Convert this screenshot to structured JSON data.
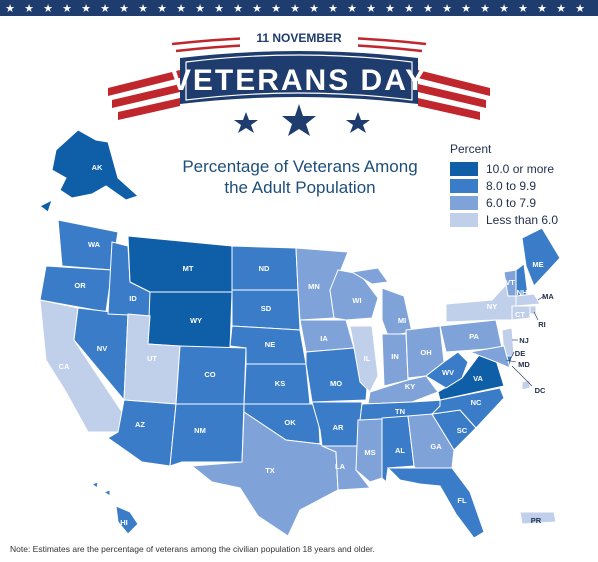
{
  "banner": {
    "date": "11 NOVEMBER",
    "title": "VETERANS DAY"
  },
  "map_title": {
    "line1": "Percentage of Veterans Among",
    "line2": "the Adult Population"
  },
  "legend": {
    "title": "Percent",
    "items": [
      {
        "label": "10.0 or more",
        "color": "#0f5ea8"
      },
      {
        "label": "8.0 to 9.9",
        "color": "#3a7cc8"
      },
      {
        "label": "6.0 to 7.9",
        "color": "#7fa3d9"
      },
      {
        "label": "Less than 6.0",
        "color": "#c0cfea"
      }
    ]
  },
  "colors": {
    "navy": "#1f3c6e",
    "red": "#c0272d",
    "border": "#ffffff"
  },
  "states": [
    {
      "abbr": "AK",
      "tier": 1
    },
    {
      "abbr": "HI",
      "tier": 2
    },
    {
      "abbr": "WA",
      "tier": 2
    },
    {
      "abbr": "OR",
      "tier": 2
    },
    {
      "abbr": "CA",
      "tier": 4
    },
    {
      "abbr": "NV",
      "tier": 2
    },
    {
      "abbr": "ID",
      "tier": 2
    },
    {
      "abbr": "MT",
      "tier": 1
    },
    {
      "abbr": "WY",
      "tier": 1
    },
    {
      "abbr": "UT",
      "tier": 4
    },
    {
      "abbr": "AZ",
      "tier": 2
    },
    {
      "abbr": "CO",
      "tier": 2
    },
    {
      "abbr": "NM",
      "tier": 2
    },
    {
      "abbr": "ND",
      "tier": 2
    },
    {
      "abbr": "SD",
      "tier": 2
    },
    {
      "abbr": "NE",
      "tier": 2
    },
    {
      "abbr": "KS",
      "tier": 2
    },
    {
      "abbr": "OK",
      "tier": 2
    },
    {
      "abbr": "TX",
      "tier": 3
    },
    {
      "abbr": "MN",
      "tier": 3
    },
    {
      "abbr": "IA",
      "tier": 3
    },
    {
      "abbr": "MO",
      "tier": 2
    },
    {
      "abbr": "AR",
      "tier": 2
    },
    {
      "abbr": "LA",
      "tier": 3
    },
    {
      "abbr": "WI",
      "tier": 3
    },
    {
      "abbr": "IL",
      "tier": 4
    },
    {
      "abbr": "MS",
      "tier": 3
    },
    {
      "abbr": "MI",
      "tier": 3
    },
    {
      "abbr": "IN",
      "tier": 3
    },
    {
      "abbr": "OH",
      "tier": 3
    },
    {
      "abbr": "KY",
      "tier": 3
    },
    {
      "abbr": "TN",
      "tier": 2
    },
    {
      "abbr": "AL",
      "tier": 2
    },
    {
      "abbr": "GA",
      "tier": 3
    },
    {
      "abbr": "FL",
      "tier": 2
    },
    {
      "abbr": "SC",
      "tier": 2
    },
    {
      "abbr": "NC",
      "tier": 2
    },
    {
      "abbr": "VA",
      "tier": 1
    },
    {
      "abbr": "WV",
      "tier": 2
    },
    {
      "abbr": "PA",
      "tier": 3
    },
    {
      "abbr": "NY",
      "tier": 4
    },
    {
      "abbr": "VT",
      "tier": 3
    },
    {
      "abbr": "NH",
      "tier": 2
    },
    {
      "abbr": "ME",
      "tier": 2
    },
    {
      "abbr": "MA",
      "tier": 4
    },
    {
      "abbr": "RI",
      "tier": 4
    },
    {
      "abbr": "CT",
      "tier": 4
    },
    {
      "abbr": "NJ",
      "tier": 4
    },
    {
      "abbr": "DE",
      "tier": 2
    },
    {
      "abbr": "MD",
      "tier": 3
    },
    {
      "abbr": "DC",
      "tier": 4
    },
    {
      "abbr": "PR",
      "tier": 4
    }
  ],
  "note": "Note: Estimates are the percentage of veterans among the civilian population 18 years and older."
}
